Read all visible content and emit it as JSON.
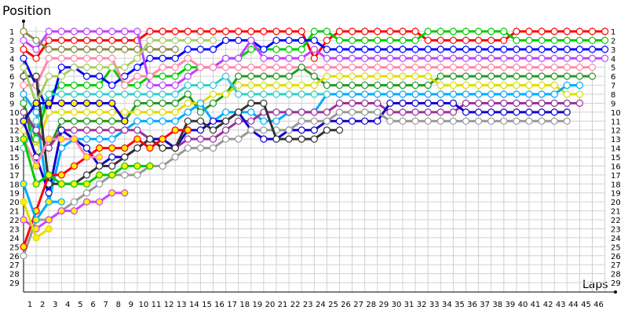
{
  "chart_data": {
    "type": "line",
    "ylabel": "Position",
    "xlabel": "Laps",
    "x": [
      0,
      1,
      2,
      3,
      4,
      5,
      6,
      7,
      8,
      9,
      10,
      11,
      12,
      13,
      14,
      15,
      16,
      17,
      18,
      19,
      20,
      21,
      22,
      23,
      24,
      25,
      26,
      27,
      28,
      29,
      30,
      31,
      32,
      33,
      34,
      35,
      36,
      37,
      38,
      39,
      40,
      41,
      42,
      43,
      44,
      45,
      46
    ],
    "x_tick_labels": [
      "1",
      "2",
      "3",
      "4",
      "5",
      "6",
      "7",
      "8",
      "9",
      "10",
      "11",
      "12",
      "13",
      "14",
      "15",
      "16",
      "17",
      "18",
      "19",
      "20",
      "21",
      "22",
      "23",
      "24",
      "25",
      "26",
      "27",
      "28",
      "29",
      "30",
      "31",
      "32",
      "33",
      "34",
      "35",
      "36",
      "37",
      "38",
      "39",
      "40",
      "41",
      "42",
      "43",
      "44",
      "45",
      "46"
    ],
    "y_tick_labels": [
      "1",
      "2",
      "3",
      "4",
      "5",
      "6",
      "7",
      "8",
      "9",
      "10",
      "11",
      "12",
      "13",
      "14",
      "15",
      "16",
      "17",
      "18",
      "19",
      "20",
      "21",
      "22",
      "23",
      "24",
      "25",
      "26",
      "27",
      "28",
      "29"
    ],
    "ylim": [
      1,
      29
    ],
    "y_inverted": true,
    "grid": true,
    "series": [
      {
        "color": "#ff0000",
        "fill": "#ffffff",
        "values": [
          3,
          4,
          2,
          2,
          2,
          2,
          2,
          2,
          2,
          2,
          1,
          1,
          1,
          1,
          1,
          1,
          1,
          1,
          1,
          1,
          1,
          1,
          1,
          4,
          2,
          1,
          1,
          1,
          1,
          1,
          1,
          1,
          2,
          2,
          2,
          2,
          2,
          2,
          2,
          1,
          1,
          1,
          1,
          1,
          1,
          1,
          1
        ]
      },
      {
        "color": "#00cc00",
        "fill": "#ffffff",
        "values": [
          9,
          13,
          8,
          7,
          7,
          7,
          7,
          5,
          7,
          7,
          6,
          6,
          6,
          5,
          5,
          5,
          4,
          4,
          3,
          3,
          3,
          3,
          3,
          1,
          1,
          2,
          2,
          2,
          2,
          2,
          2,
          2,
          1,
          1,
          1,
          1,
          1,
          1,
          1,
          2,
          2,
          2,
          2,
          2,
          2,
          2,
          2
        ]
      },
      {
        "color": "#0000ff",
        "fill": "#ffffff",
        "values": [
          4,
          7,
          10,
          5,
          5,
          6,
          6,
          7,
          6,
          5,
          4,
          4,
          4,
          3,
          3,
          3,
          2,
          2,
          2,
          3,
          2,
          2,
          2,
          2,
          3,
          3,
          3,
          3,
          3,
          3,
          3,
          3,
          3,
          3,
          3,
          3,
          3,
          3,
          3,
          3,
          3,
          3,
          3,
          3,
          3,
          3,
          3
        ]
      },
      {
        "color": "#c040ff",
        "fill": "#ffffff",
        "values": [
          2,
          3,
          1,
          1,
          1,
          1,
          1,
          1,
          1,
          1,
          7,
          7,
          7,
          6,
          5,
          5,
          4,
          4,
          2,
          4,
          4,
          4,
          4,
          3,
          4,
          4,
          4,
          4,
          4,
          4,
          4,
          4,
          4,
          4,
          4,
          4,
          4,
          4,
          4,
          4,
          4,
          4,
          4,
          4,
          4,
          4,
          4
        ]
      },
      {
        "color": "#ff88aa",
        "fill": "#ffffff",
        "values": [
          7,
          7,
          4,
          4,
          4,
          4,
          4,
          4,
          7,
          6,
          6,
          5,
          5,
          4,
          5,
          5,
          5,
          5,
          5,
          5,
          5,
          5,
          5,
          5,
          5,
          5,
          5,
          5,
          5,
          5,
          5,
          5,
          5,
          5,
          5,
          5,
          5,
          5,
          5,
          5,
          5,
          5,
          5,
          5,
          5,
          5,
          null
        ]
      },
      {
        "color": "#229922",
        "fill": "#ffffff",
        "values": [
          9,
          15,
          14,
          11,
          11,
          11,
          11,
          11,
          11,
          9,
          9,
          9,
          9,
          8,
          10,
          9,
          8,
          6,
          6,
          6,
          6,
          6,
          5,
          6,
          7,
          7,
          7,
          7,
          7,
          7,
          7,
          7,
          7,
          6,
          6,
          6,
          6,
          6,
          6,
          6,
          6,
          6,
          6,
          6,
          6,
          6,
          null
        ]
      },
      {
        "color": "#dddd00",
        "fill": "#ffffff",
        "values": [
          12,
          14,
          10,
          10,
          10,
          10,
          10,
          10,
          10,
          10,
          10,
          10,
          10,
          9,
          9,
          8,
          8,
          7,
          7,
          7,
          7,
          7,
          7,
          7,
          6,
          6,
          6,
          6,
          6,
          6,
          6,
          6,
          6,
          7,
          7,
          7,
          7,
          7,
          7,
          7,
          7,
          7,
          7,
          8,
          8,
          null,
          null
        ]
      },
      {
        "color": "#00aaff",
        "fill": "#ffffff",
        "values": [
          8,
          10,
          20,
          14,
          13,
          13,
          13,
          13,
          12,
          11,
          11,
          11,
          11,
          10,
          9,
          11,
          10,
          10,
          10,
          11,
          11,
          10,
          10,
          10,
          8,
          8,
          8,
          8,
          8,
          8,
          8,
          8,
          8,
          8,
          8,
          8,
          8,
          8,
          8,
          8,
          8,
          8,
          8,
          7,
          7,
          null,
          null
        ]
      },
      {
        "color": "#33cccc",
        "fill": "#ffffff",
        "values": [
          14,
          11,
          8,
          8,
          8,
          8,
          8,
          8,
          8,
          8,
          8,
          8,
          8,
          7,
          7,
          7,
          6,
          8,
          8,
          8,
          8,
          8,
          8,
          8,
          8,
          null,
          null,
          null,
          null,
          null,
          null,
          null,
          null,
          null,
          null,
          null,
          null,
          null,
          null,
          null,
          null,
          null,
          null,
          null,
          null,
          null,
          null
        ]
      },
      {
        "color": "#993399",
        "fill": "#ffffff",
        "values": [
          10,
          12,
          14,
          12,
          12,
          12,
          12,
          12,
          12,
          12,
          13,
          13,
          14,
          13,
          13,
          13,
          12,
          11,
          11,
          10,
          10,
          10,
          10,
          10,
          10,
          9,
          9,
          9,
          9,
          10,
          10,
          10,
          10,
          10,
          10,
          9,
          9,
          9,
          9,
          9,
          9,
          9,
          9,
          9,
          9,
          null,
          null
        ]
      },
      {
        "color": "#1100cc",
        "fill": "#ffffff",
        "values": [
          11,
          15,
          19,
          12,
          13,
          14,
          16,
          15,
          15,
          14,
          13,
          13,
          14,
          12,
          12,
          11,
          11,
          10,
          12,
          13,
          13,
          12,
          12,
          12,
          11,
          11,
          11,
          11,
          11,
          9,
          9,
          9,
          9,
          9,
          9,
          10,
          10,
          10,
          10,
          10,
          10,
          10,
          10,
          10,
          null,
          null,
          null
        ]
      },
      {
        "color": "#999999",
        "fill": "#ffffff",
        "values": [
          26,
          22,
          22,
          21,
          20,
          19,
          18,
          17,
          17,
          17,
          16,
          16,
          15,
          14,
          14,
          14,
          13,
          13,
          12,
          12,
          12,
          12,
          11,
          11,
          11,
          10,
          10,
          10,
          10,
          11,
          11,
          11,
          11,
          11,
          11,
          11,
          11,
          11,
          11,
          11,
          11,
          11,
          11,
          11,
          null,
          null,
          null
        ]
      },
      {
        "color": "#333333",
        "fill": "#ffffff",
        "values": [
          6,
          6,
          18,
          18,
          18,
          17,
          16,
          16,
          15,
          14,
          13,
          14,
          14,
          11,
          11,
          12,
          11,
          10,
          9,
          9,
          13,
          13,
          13,
          13,
          12,
          12,
          null,
          null,
          null,
          null,
          null,
          null,
          null,
          null,
          null,
          null,
          null,
          null,
          null,
          null,
          null,
          null,
          null,
          null,
          null,
          null,
          null
        ]
      },
      {
        "color": "#888844",
        "fill": "#ffffff",
        "values": [
          1,
          2,
          3,
          3,
          3,
          3,
          3,
          3,
          3,
          3,
          3,
          3,
          3,
          null,
          null,
          null,
          null,
          null,
          null,
          null,
          null,
          null,
          null,
          null,
          null,
          null,
          null,
          null,
          null,
          null,
          null,
          null,
          null,
          null,
          null,
          null,
          null,
          null,
          null,
          null,
          null,
          null,
          null,
          null,
          null,
          null,
          null
        ]
      },
      {
        "color": "#aacc66",
        "fill": "#ffffff",
        "values": [
          5,
          9,
          6,
          6,
          5,
          5,
          5,
          5,
          5,
          4,
          2,
          2,
          2,
          2,
          2,
          2,
          null,
          null,
          null,
          null,
          null,
          null,
          null,
          null,
          null,
          null,
          null,
          null,
          null,
          null,
          null,
          null,
          null,
          null,
          null,
          null,
          null,
          null,
          null,
          null,
          null,
          null,
          null,
          null,
          null,
          null,
          null
        ]
      },
      {
        "color": "#ff0000",
        "fill": "#ffee00",
        "values": [
          25,
          21,
          17,
          17,
          16,
          15,
          14,
          14,
          14,
          13,
          14,
          13,
          12,
          12,
          null,
          null,
          null,
          null,
          null,
          null,
          null,
          null,
          null,
          null,
          null,
          null,
          null,
          null,
          null,
          null,
          null,
          null,
          null,
          null,
          null,
          null,
          null,
          null,
          null,
          null,
          null,
          null,
          null,
          null,
          null,
          null,
          null
        ]
      },
      {
        "color": "#ff88aa",
        "fill": "#ffee00",
        "values": [
          13,
          16,
          13,
          13,
          13,
          15,
          15,
          null,
          null,
          null,
          null,
          null,
          null,
          null,
          null,
          null,
          null,
          null,
          null,
          null,
          null,
          null,
          null,
          null,
          null,
          null,
          null,
          null,
          null,
          null,
          null,
          null,
          null,
          null,
          null,
          null,
          null,
          null,
          null,
          null,
          null,
          null,
          null,
          null,
          null,
          null,
          null
        ]
      },
      {
        "color": "#00cc00",
        "fill": "#ffee00",
        "values": [
          13,
          18,
          17,
          18,
          18,
          18,
          17,
          17,
          16,
          16,
          16,
          null,
          null,
          null,
          null,
          null,
          null,
          null,
          null,
          null,
          null,
          null,
          null,
          null,
          null,
          null,
          null,
          null,
          null,
          null,
          null,
          null,
          null,
          null,
          null,
          null,
          null,
          null,
          null,
          null,
          null,
          null,
          null,
          null,
          null,
          null,
          null
        ]
      },
      {
        "color": "#cc44ff",
        "fill": "#ffee00",
        "values": [
          22,
          23,
          22,
          21,
          21,
          20,
          20,
          19,
          19,
          null,
          null,
          null,
          null,
          null,
          null,
          null,
          null,
          null,
          null,
          null,
          null,
          null,
          null,
          null,
          null,
          null,
          null,
          null,
          null,
          null,
          null,
          null,
          null,
          null,
          null,
          null,
          null,
          null,
          null,
          null,
          null,
          null,
          null,
          null,
          null,
          null,
          null
        ]
      },
      {
        "color": "#00aaff",
        "fill": "#ffee00",
        "values": [
          18,
          22,
          20,
          20,
          null,
          null,
          null,
          null,
          null,
          null,
          null,
          null,
          null,
          null,
          null,
          null,
          null,
          null,
          null,
          null,
          null,
          null,
          null,
          null,
          null,
          null,
          null,
          null,
          null,
          null,
          null,
          null,
          null,
          null,
          null,
          null,
          null,
          null,
          null,
          null,
          null,
          null,
          null,
          null,
          null,
          null,
          null
        ]
      },
      {
        "color": "#1100cc",
        "fill": "#ffee00",
        "values": [
          11,
          9,
          9,
          9,
          9,
          9,
          9,
          9,
          11,
          null,
          null,
          null,
          null,
          null,
          null,
          null,
          null,
          null,
          null,
          null,
          null,
          null,
          null,
          null,
          null,
          null,
          null,
          null,
          null,
          null,
          null,
          null,
          null,
          null,
          null,
          null,
          null,
          null,
          null,
          null,
          null,
          null,
          null,
          null,
          null,
          null,
          null
        ]
      },
      {
        "color": "#dddd00",
        "fill": "#ffee00",
        "values": [
          20,
          24,
          23,
          null,
          null,
          null,
          null,
          null,
          null,
          null,
          null,
          null,
          null,
          null,
          null,
          null,
          null,
          null,
          null,
          null,
          null,
          null,
          null,
          null,
          null,
          null,
          null,
          null,
          null,
          null,
          null,
          null,
          null,
          null,
          null,
          null,
          null,
          null,
          null,
          null,
          null,
          null,
          null,
          null,
          null,
          null,
          null
        ]
      }
    ]
  }
}
